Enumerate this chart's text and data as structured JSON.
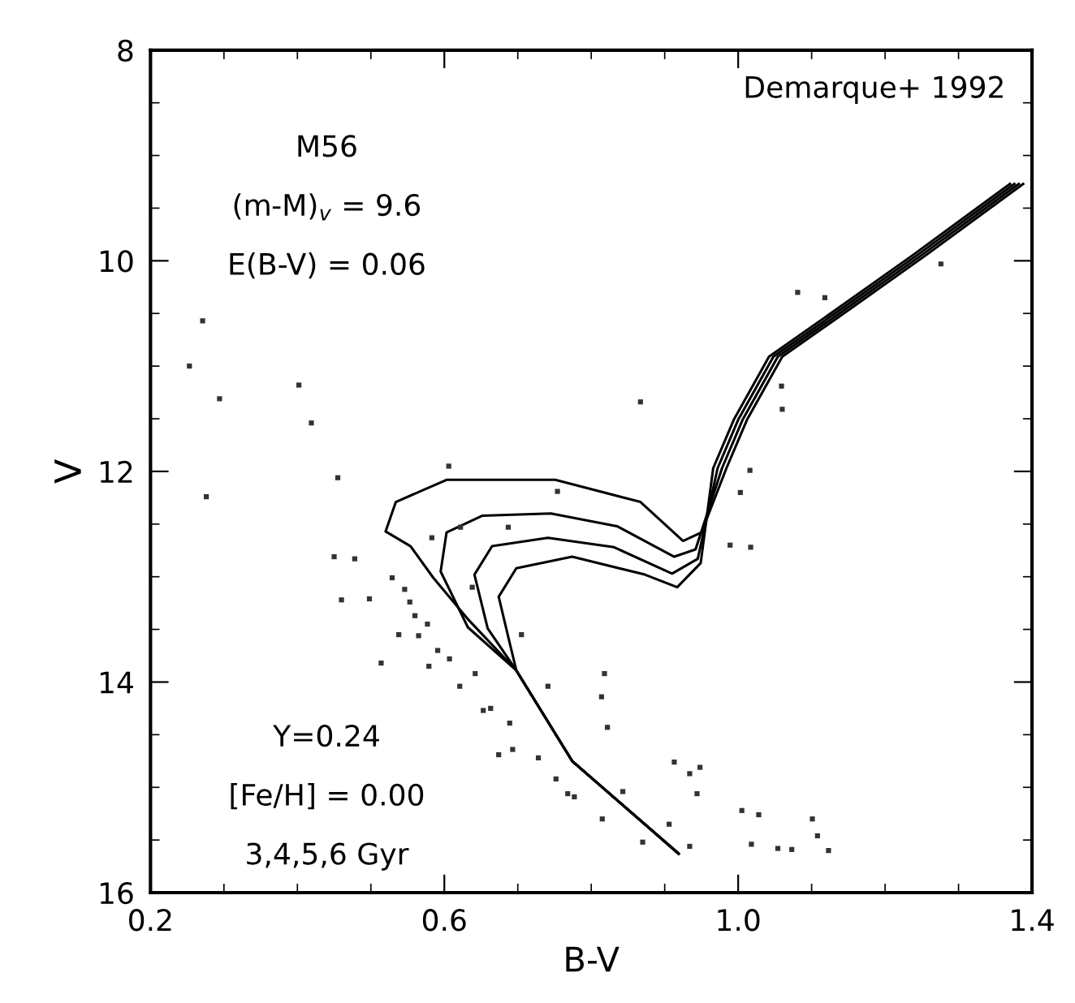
{
  "chart_data": {
    "type": "scatter",
    "xlabel": "B-V",
    "ylabel": "V",
    "xlim": [
      0.2,
      1.4
    ],
    "xticks": [
      0.2,
      0.6,
      {
        "value": 1.0,
        "label": "1.0"
      },
      1.4
    ],
    "ylim": [
      16,
      8
    ],
    "yticks": [
      8,
      10,
      12,
      14,
      16
    ],
    "grid": false,
    "legend": false,
    "annotations": [
      "Demarque+ 1992",
      "M56",
      "(m-M)$_{v}$ = 9.6",
      "E(B-V) = 0.06",
      "Y=0.24",
      "[Fe/H] = 0.00",
      "3,4,5,6 Gyr"
    ],
    "series": [
      {
        "type": "line",
        "color": "#000000",
        "line_style": "solid",
        "marker": "none",
        "x": [
          0.919,
          0.774,
          0.698,
          0.633,
          0.585,
          0.554,
          0.52,
          0.534,
          0.603,
          0.751,
          0.867,
          0.925,
          0.95,
          0.984,
          1.012,
          1.06,
          1.152,
          1.255,
          1.388
        ],
        "values": [
          15.63,
          14.75,
          13.89,
          13.41,
          13.01,
          12.71,
          12.57,
          12.29,
          12.08,
          12.08,
          12.29,
          12.66,
          12.58,
          11.97,
          11.51,
          10.91,
          10.46,
          9.95,
          9.27
        ]
      },
      {
        "type": "line",
        "color": "#000000",
        "line_style": "solid",
        "marker": "none",
        "x": [
          0.919,
          0.774,
          0.698,
          0.632,
          0.595,
          0.603,
          0.652,
          0.745,
          0.835,
          0.913,
          0.942,
          0.978,
          1.006,
          1.054,
          1.146,
          1.249,
          1.382
        ],
        "values": [
          15.63,
          14.75,
          13.89,
          13.48,
          12.95,
          12.58,
          12.42,
          12.4,
          12.52,
          12.81,
          12.74,
          11.97,
          11.51,
          10.91,
          10.46,
          9.95,
          9.27
        ]
      },
      {
        "type": "line",
        "color": "#000000",
        "line_style": "solid",
        "marker": "none",
        "x": [
          0.919,
          0.774,
          0.698,
          0.659,
          0.641,
          0.665,
          0.741,
          0.831,
          0.91,
          0.945,
          0.972,
          1.0,
          1.048,
          1.14,
          1.243,
          1.376
        ],
        "values": [
          15.63,
          14.75,
          13.89,
          13.49,
          12.98,
          12.71,
          12.63,
          12.72,
          12.97,
          12.83,
          11.97,
          11.51,
          10.91,
          10.46,
          9.95,
          9.27
        ]
      },
      {
        "type": "line",
        "color": "#000000",
        "line_style": "solid",
        "marker": "none",
        "x": [
          0.919,
          0.774,
          0.698,
          0.689,
          0.674,
          0.698,
          0.774,
          0.873,
          0.917,
          0.949,
          0.966,
          0.994,
          1.042,
          1.134,
          1.237,
          1.37
        ],
        "values": [
          15.63,
          14.75,
          13.89,
          13.63,
          13.19,
          12.92,
          12.81,
          12.98,
          13.1,
          12.87,
          11.97,
          11.51,
          10.91,
          10.46,
          9.95,
          9.27
        ]
      },
      {
        "color": "#333333",
        "marker": "square",
        "x": [
          0.294,
          0.419,
          0.455,
          0.276,
          0.45,
          0.478,
          0.46,
          0.498,
          0.529,
          0.546,
          0.553,
          0.56,
          0.577,
          0.538,
          0.565,
          0.591,
          0.607,
          0.579,
          0.621,
          0.642,
          0.653,
          0.663,
          0.689,
          0.674,
          0.693,
          0.728,
          0.752,
          0.768,
          0.777,
          0.741,
          0.818,
          0.814,
          0.822,
          0.843,
          0.815,
          0.87,
          0.913,
          0.934,
          0.948,
          0.944,
          0.906,
          0.934,
          1.005,
          1.028,
          1.018,
          1.054,
          1.073,
          1.101,
          1.108,
          1.123,
          0.514,
          0.583,
          0.622,
          0.687,
          0.754,
          0.606,
          1.016,
          1.003,
          0.989,
          1.017,
          0.705,
          0.638,
          0.271,
          0.253,
          0.402,
          0.867,
          1.081,
          1.118,
          1.059,
          1.06,
          1.276
        ],
        "values": [
          11.31,
          11.54,
          12.06,
          12.24,
          12.81,
          12.83,
          13.22,
          13.21,
          13.01,
          13.12,
          13.24,
          13.37,
          13.45,
          13.55,
          13.56,
          13.7,
          13.78,
          13.85,
          14.04,
          13.92,
          14.27,
          14.25,
          14.39,
          14.69,
          14.64,
          14.72,
          14.92,
          15.06,
          15.09,
          14.04,
          13.92,
          14.14,
          14.43,
          15.04,
          15.3,
          15.52,
          14.76,
          14.87,
          14.81,
          15.06,
          15.35,
          15.56,
          15.22,
          15.26,
          15.54,
          15.58,
          15.59,
          15.3,
          15.46,
          15.6,
          13.82,
          12.63,
          12.53,
          12.53,
          12.19,
          11.95,
          11.99,
          12.2,
          12.7,
          12.72,
          13.55,
          13.1,
          10.57,
          11.0,
          11.18,
          11.34,
          10.3,
          10.35,
          11.19,
          11.41,
          10.03
        ]
      }
    ]
  }
}
